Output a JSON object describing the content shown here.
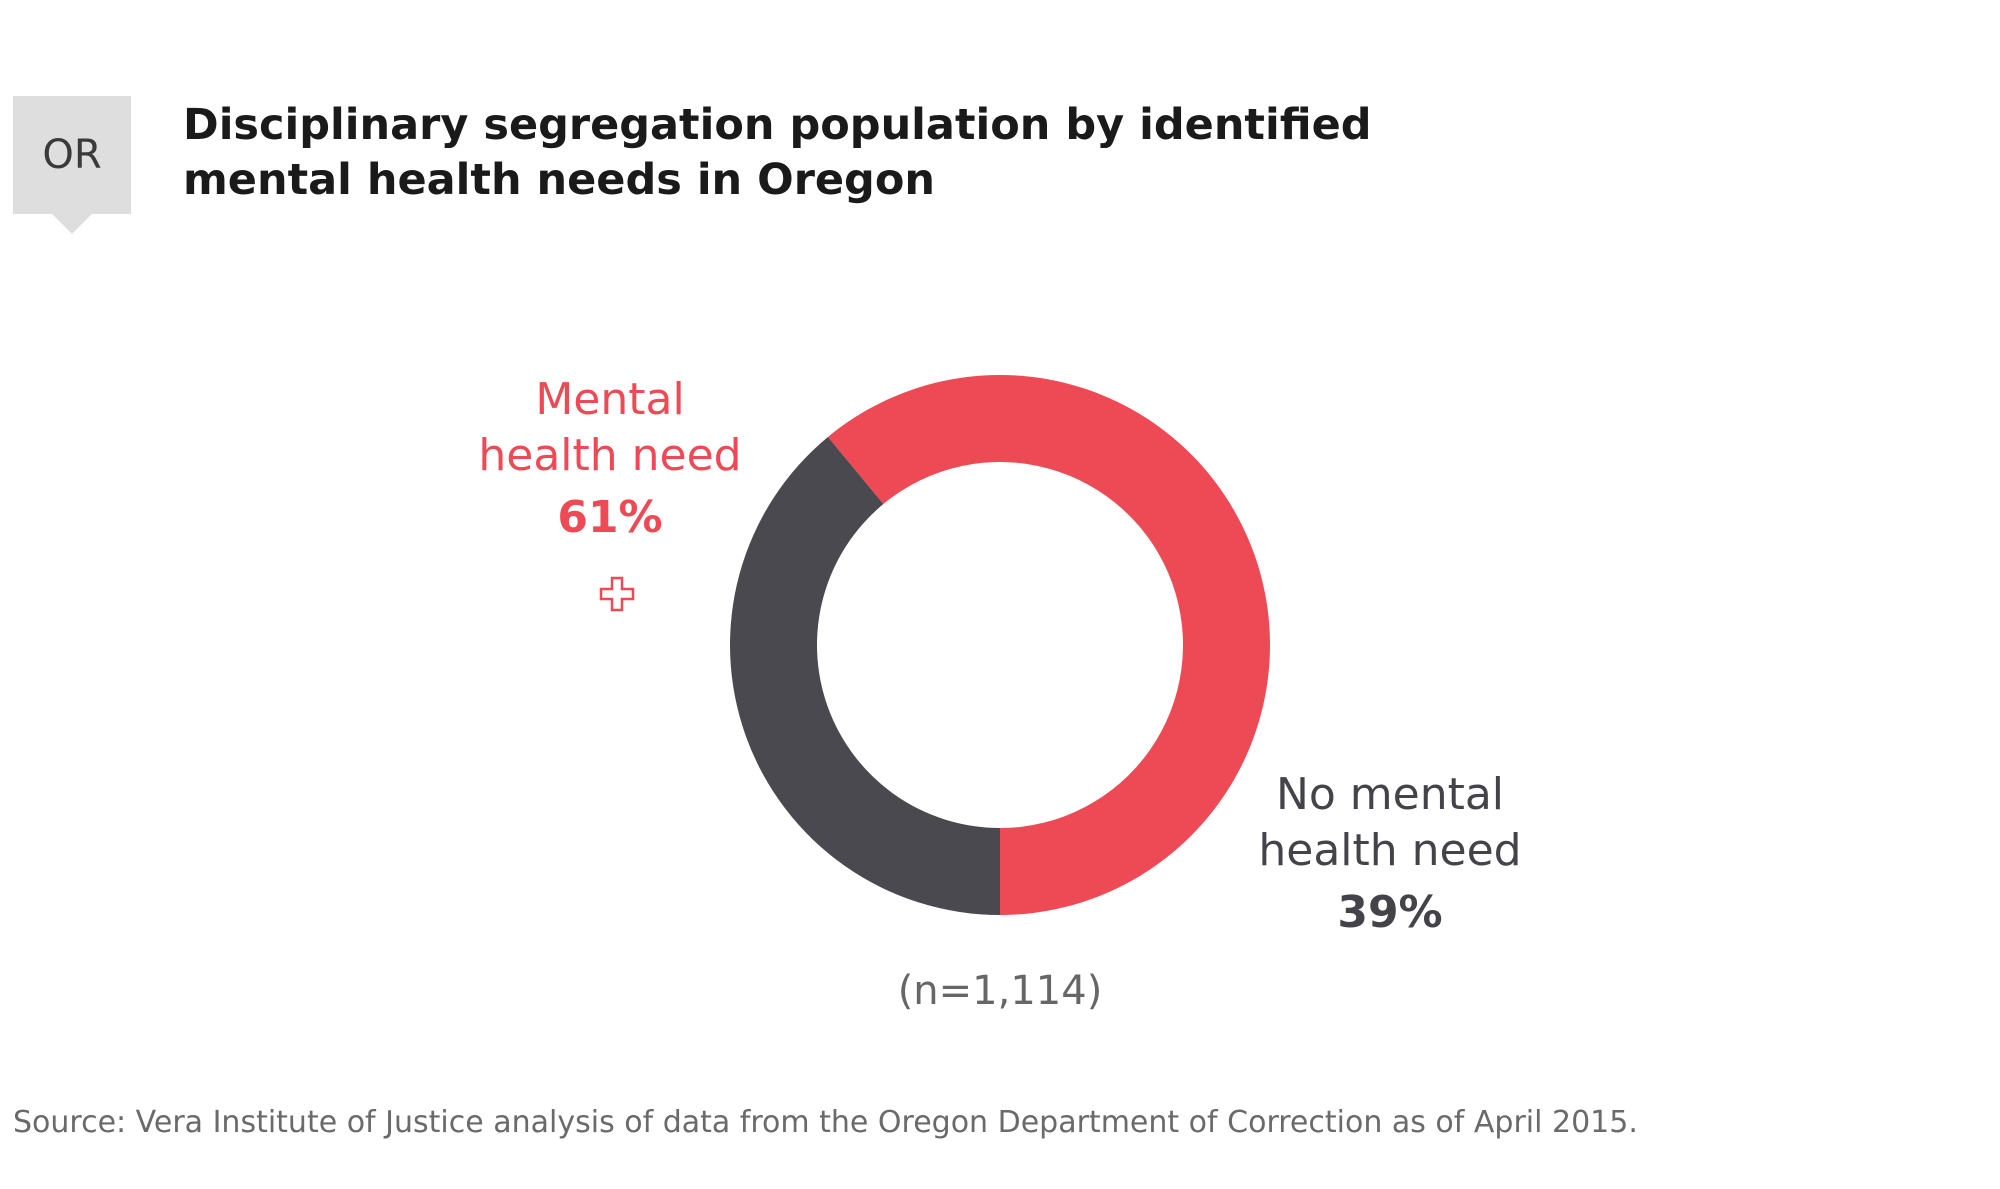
{
  "badge": {
    "text": "OR"
  },
  "title": "Disciplinary segregation population by identified mental health needs in Oregon",
  "chart_data": {
    "type": "pie",
    "variant": "donut",
    "categories": [
      "Mental health need",
      "No mental health need"
    ],
    "values": [
      61,
      39
    ],
    "value_labels": [
      "61%",
      "39%"
    ],
    "colors": [
      "#ee4a55",
      "#4a4950"
    ],
    "sample_size": "(n=1,114)"
  },
  "labels": {
    "mental": {
      "name": "Mental health need",
      "pct": "61%",
      "icon": "medical-cross-icon"
    },
    "no_mental": {
      "name": "No mental health need",
      "pct": "39%"
    }
  },
  "source": "Source: Vera Institute of Justice analysis of data from the Oregon Department of Correction as of April 2015."
}
